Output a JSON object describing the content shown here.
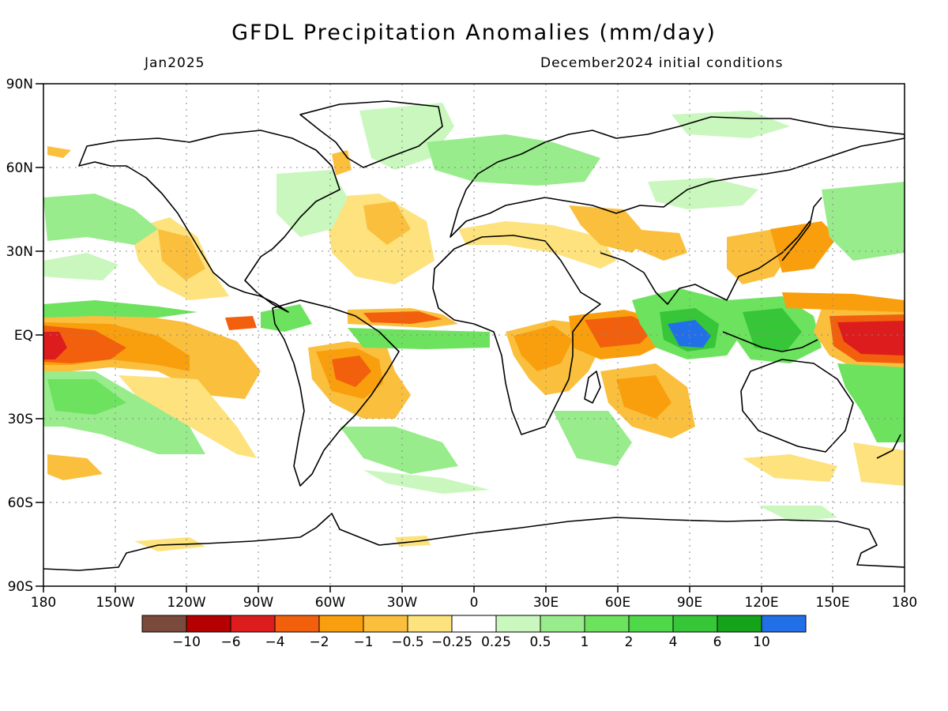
{
  "header": {
    "title": "GFDL Precipitation Anomalies (mm/day)",
    "left_subtitle": "Jan2025",
    "right_subtitle": "December2024 initial conditions"
  },
  "axes": {
    "lat_labels": [
      "90N",
      "60N",
      "30N",
      "EQ",
      "30S",
      "60S",
      "90S"
    ],
    "lon_labels": [
      "180",
      "150W",
      "120W",
      "90W",
      "60W",
      "30W",
      "0",
      "30E",
      "60E",
      "90E",
      "120E",
      "150E",
      "180"
    ],
    "grid": "dotted"
  },
  "colorbar": {
    "colors": [
      "#7a4a3c",
      "#b40000",
      "#dd1d1d",
      "#f2600e",
      "#f99f0d",
      "#fbbf3e",
      "#fde27d",
      "#ffffff",
      "#c9f7bd",
      "#98ec8b",
      "#6de25f",
      "#4ed84a",
      "#36c637",
      "#16a31c",
      "#2270e8"
    ],
    "labels": [
      "−10",
      "−6",
      "−4",
      "−2",
      "−1",
      "−0.5",
      "−0.25",
      "0.25",
      "0.5",
      "1",
      "2",
      "4",
      "6",
      "10"
    ]
  },
  "map": {
    "type": "global precipitation anomaly map",
    "projection": "cylindrical equidistant",
    "lon_range": [
      -180,
      180
    ],
    "lat_range": [
      -90,
      90
    ]
  }
}
